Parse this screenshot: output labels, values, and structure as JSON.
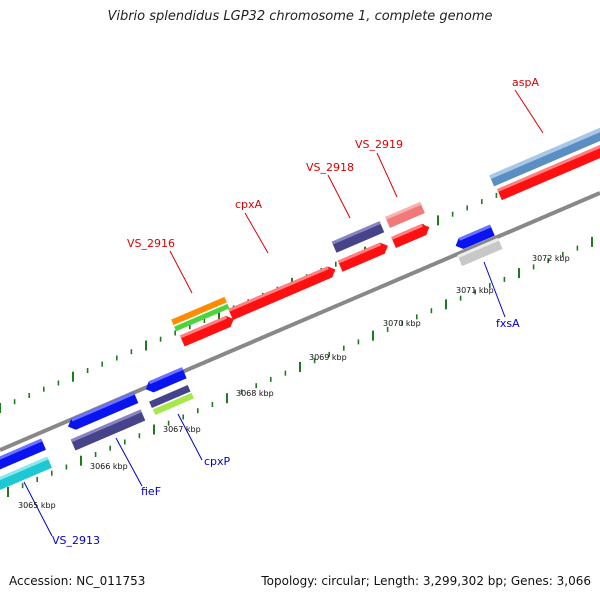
{
  "title": "Vibrio splendidus LGP32 chromosome 1, complete genome",
  "footer": {
    "accession": "Accession: NC_011753",
    "summary": "Topology: circular; Length: 3,299,302 bp; Genes: 3,066"
  },
  "tick_labels": [
    "3065 kbp",
    "3066 kbp",
    "3067 kbp",
    "3068 kbp",
    "3069 kbp",
    "3070 kbp",
    "3071 kbp",
    "3072 kbp"
  ],
  "gene_labels": {
    "aspA": "aspA",
    "VS_2919": "VS_2919",
    "VS_2918": "VS_2918",
    "cpxA": "cpxA",
    "VS_2916": "VS_2916",
    "fxsA": "fxsA",
    "cpxP": "cpxP",
    "fieF": "fieF",
    "VS_2913": "VS_2913"
  },
  "colors": {
    "backbone": "#888888",
    "tick": "#1e7a1e",
    "forward_label": "#dd0000",
    "reverse_label": "#0000cc",
    "red": "#ff1010",
    "pink": "#f07a7a",
    "steelblue": "#5b8fc4",
    "navy": "#46438a",
    "blue": "#0a14f0",
    "gray": "#c8c8c8",
    "cyan": "#1ec8d2",
    "orange": "#ff8c00",
    "green": "#4cd43c",
    "lime": "#a6e84a"
  }
}
